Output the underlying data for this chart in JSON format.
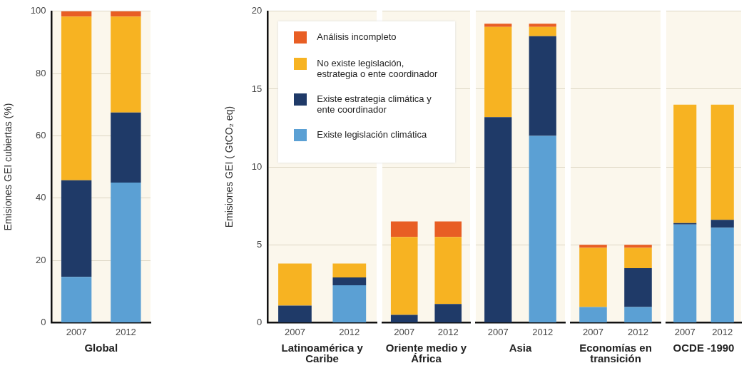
{
  "chart_data": [
    {
      "type": "bar",
      "stacked": true,
      "xlabel": "Global",
      "ylabel": "Emisiones GEI cubiertas (%)",
      "categories": [
        "2007",
        "2012"
      ],
      "ylim": [
        0,
        100
      ],
      "yticks": [
        0,
        20,
        40,
        60,
        80,
        100
      ],
      "grid": "y",
      "series": [
        {
          "color": "#5ba0d4",
          "values": [
            14.7,
            45
          ]
        },
        {
          "color": "#1f3a68",
          "values": [
            31,
            22.5
          ]
        },
        {
          "color": "#f7b322",
          "values": [
            52.6,
            30.8
          ]
        },
        {
          "color": "#e85e24",
          "values": [
            1.7,
            1.7
          ]
        }
      ]
    },
    {
      "type": "bar",
      "stacked": true,
      "xlabel": "Latinoamérica y Caribe",
      "ylabel": "Emisiones GEI ( GtCO₂ eq)",
      "categories": [
        "2007",
        "2012"
      ],
      "ylim": [
        0,
        20
      ],
      "yticks": [
        0,
        5,
        10,
        15,
        20
      ],
      "grid": "y",
      "legend": "top",
      "series": [
        {
          "name": "Existe legislación climática",
          "color": "#5ba0d4",
          "values": [
            0,
            2.4
          ]
        },
        {
          "name": "Existe estrategia climática y ente coordinador",
          "color": "#1f3a68",
          "values": [
            1.1,
            0.5
          ]
        },
        {
          "name": "No existe legislación, estrategia o ente coordinador",
          "color": "#f7b322",
          "values": [
            2.7,
            0.9
          ]
        },
        {
          "name": "Análisis incompleto",
          "color": "#e85e24",
          "values": [
            0,
            0
          ]
        }
      ]
    },
    {
      "type": "bar",
      "stacked": true,
      "xlabel": "Oriente medio y África",
      "categories": [
        "2007",
        "2012"
      ],
      "ylim": [
        0,
        20
      ],
      "yticks": [
        0,
        5,
        10,
        15,
        20
      ],
      "grid": "y",
      "tick_labels": "x",
      "series": [
        {
          "color": "#5ba0d4",
          "values": [
            0,
            0
          ]
        },
        {
          "color": "#1f3a68",
          "values": [
            0.5,
            1.2
          ]
        },
        {
          "color": "#f7b322",
          "values": [
            5.0,
            4.3
          ]
        },
        {
          "color": "#e85e24",
          "values": [
            1.0,
            1.0
          ]
        }
      ]
    },
    {
      "type": "bar",
      "stacked": true,
      "xlabel": "Asia",
      "categories": [
        "2007",
        "2012"
      ],
      "ylim": [
        0,
        20
      ],
      "yticks": [
        0,
        5,
        10,
        15,
        20
      ],
      "grid": "y",
      "tick_labels": "x",
      "series": [
        {
          "color": "#5ba0d4",
          "values": [
            0,
            12.0
          ]
        },
        {
          "color": "#1f3a68",
          "values": [
            13.2,
            6.4
          ]
        },
        {
          "color": "#f7b322",
          "values": [
            5.8,
            0.6
          ]
        },
        {
          "color": "#e85e24",
          "values": [
            0.2,
            0.2
          ]
        }
      ]
    },
    {
      "type": "bar",
      "stacked": true,
      "xlabel": "Economías en transición",
      "categories": [
        "2007",
        "2012"
      ],
      "ylim": [
        0,
        20
      ],
      "yticks": [
        0,
        5,
        10,
        15,
        20
      ],
      "grid": "y",
      "tick_labels": "x",
      "series": [
        {
          "color": "#5ba0d4",
          "values": [
            1.0,
            1.0
          ]
        },
        {
          "color": "#1f3a68",
          "values": [
            0,
            2.5
          ]
        },
        {
          "color": "#f7b322",
          "values": [
            3.8,
            1.3
          ]
        },
        {
          "color": "#e85e24",
          "values": [
            0.2,
            0.2
          ]
        }
      ]
    },
    {
      "type": "bar",
      "stacked": true,
      "xlabel": "OCDE -1990",
      "categories": [
        "2007",
        "2012"
      ],
      "ylim": [
        0,
        20
      ],
      "yticks": [
        0,
        5,
        10,
        15,
        20
      ],
      "grid": "y",
      "tick_labels": "x",
      "series": [
        {
          "color": "#5ba0d4",
          "values": [
            6.3,
            6.1
          ]
        },
        {
          "color": "#1f3a68",
          "values": [
            0.1,
            0.5
          ]
        },
        {
          "color": "#f7b322",
          "values": [
            7.6,
            7.4
          ]
        },
        {
          "color": "#e85e24",
          "values": [
            0,
            0
          ]
        }
      ]
    }
  ]
}
